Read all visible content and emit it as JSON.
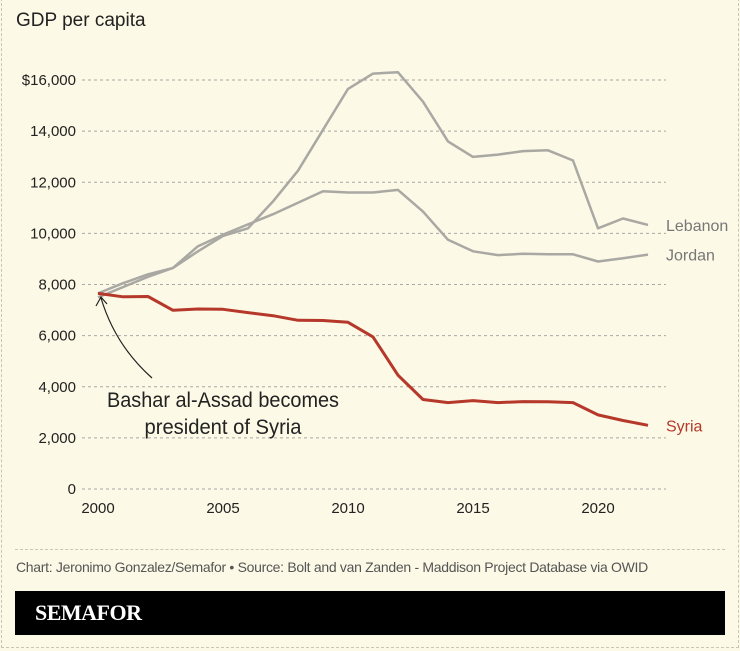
{
  "title": "GDP per capita",
  "credit": "Chart: Jeronimo Gonzalez/Semafor • Source: Bolt and van Zanden - Maddison Project Database via OWID",
  "logo": "SEMAFOR",
  "colors": {
    "background": "#fcf9e6",
    "syria": "#b5382a",
    "others": "#a9a8a3"
  },
  "chart_data": {
    "type": "line",
    "title": "GDP per capita",
    "x": [
      2000,
      2001,
      2002,
      2003,
      2004,
      2005,
      2006,
      2007,
      2008,
      2009,
      2010,
      2011,
      2012,
      2013,
      2014,
      2015,
      2016,
      2017,
      2018,
      2019,
      2020,
      2021,
      2022
    ],
    "xlim": [
      2000,
      2022
    ],
    "ylim": [
      0,
      16000
    ],
    "grid": true,
    "y_ticks": [
      {
        "value": 0,
        "label": "0"
      },
      {
        "value": 2000,
        "label": "2,000"
      },
      {
        "value": 4000,
        "label": "4,000"
      },
      {
        "value": 6000,
        "label": "6,000"
      },
      {
        "value": 8000,
        "label": "8,000"
      },
      {
        "value": 10000,
        "label": "10,000"
      },
      {
        "value": 12000,
        "label": "12,000"
      },
      {
        "value": 14000,
        "label": "14,000"
      },
      {
        "value": 16000,
        "label": "$16,000"
      }
    ],
    "x_ticks": [
      {
        "value": 2000,
        "label": "2000"
      },
      {
        "value": 2005,
        "label": "2005"
      },
      {
        "value": 2010,
        "label": "2010"
      },
      {
        "value": 2015,
        "label": "2015"
      },
      {
        "value": 2020,
        "label": "2020"
      }
    ],
    "series": [
      {
        "name": "Lebanon",
        "color": "#a9a8a3",
        "values": [
          7500,
          7900,
          8300,
          8650,
          9300,
          9900,
          10200,
          11250,
          12450,
          14050,
          15650,
          16250,
          16300,
          15150,
          13600,
          12990,
          13080,
          13220,
          13250,
          12850,
          10200,
          10580,
          10330
        ]
      },
      {
        "name": "Jordan",
        "color": "#a9a8a3",
        "values": [
          7650,
          8050,
          8400,
          8650,
          9500,
          9950,
          10350,
          10750,
          11200,
          11650,
          11600,
          11600,
          11700,
          10850,
          9750,
          9300,
          9150,
          9200,
          9180,
          9180,
          8900,
          9030,
          9170
        ]
      },
      {
        "name": "Syria",
        "color": "#b5382a",
        "values": [
          7650,
          7520,
          7530,
          6990,
          7040,
          7030,
          6900,
          6780,
          6600,
          6590,
          6520,
          5950,
          4450,
          3500,
          3380,
          3460,
          3380,
          3420,
          3410,
          3380,
          2900,
          2680,
          2490
        ]
      }
    ],
    "annotation": {
      "lines": [
        "Bashar al-Assad becomes",
        "president of Syria"
      ],
      "x": 2000
    }
  }
}
